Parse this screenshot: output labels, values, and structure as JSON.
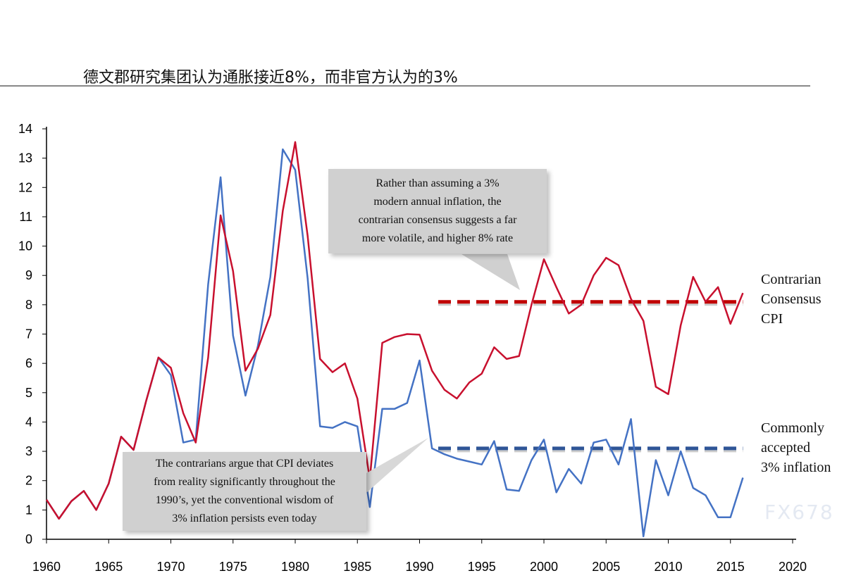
{
  "title": "德文郡研究集团认为通胀接近8%，而非官方认为的3%",
  "chart_data": {
    "type": "line",
    "title": "德文郡研究集团认为通胀接近8%，而非官方认为的3%",
    "xlabel": "",
    "ylabel": "",
    "xlim": [
      1960,
      2020
    ],
    "ylim": [
      0,
      14
    ],
    "x_ticks": [
      "1960",
      "1965",
      "1970",
      "1975",
      "1980",
      "1985",
      "1990",
      "1995",
      "2000",
      "2005",
      "2010",
      "2015",
      "2020"
    ],
    "y_ticks": [
      "0",
      "1",
      "2",
      "3",
      "4",
      "5",
      "6",
      "7",
      "8",
      "9",
      "10",
      "11",
      "12",
      "13",
      "14"
    ],
    "x_start": 1960,
    "series": [
      {
        "name": "Contrarian Consensus CPI",
        "color": "#c8102e",
        "values": [
          1.35,
          0.7,
          1.3,
          1.65,
          1.0,
          1.9,
          3.5,
          3.05,
          4.7,
          6.2,
          5.85,
          4.3,
          3.3,
          6.2,
          11.05,
          9.15,
          5.75,
          6.5,
          7.65,
          11.2,
          13.55,
          10.35,
          6.15,
          5.7,
          6.0,
          4.8,
          2.05,
          6.7,
          6.9,
          7.0,
          6.98,
          5.75,
          5.1,
          4.8,
          5.35,
          5.65,
          6.55,
          6.15,
          6.25,
          8.0,
          9.55,
          8.6,
          7.7,
          8.0,
          9.0,
          9.6,
          9.35,
          8.2,
          7.45,
          5.2,
          4.95,
          7.3,
          8.95,
          8.1,
          8.6,
          7.35,
          8.4
        ]
      },
      {
        "name": "Commonly accepted 3% inflation",
        "color": "#4472c4",
        "values": [
          1.35,
          0.7,
          1.3,
          1.65,
          1.0,
          1.9,
          3.5,
          3.05,
          4.7,
          6.2,
          5.6,
          3.3,
          3.4,
          8.7,
          12.35,
          6.95,
          4.9,
          6.6,
          8.95,
          13.3,
          12.6,
          8.9,
          3.85,
          3.8,
          4.0,
          3.85,
          1.1,
          4.45,
          4.45,
          4.65,
          6.1,
          3.1,
          2.9,
          2.75,
          2.65,
          2.55,
          3.35,
          1.7,
          1.65,
          2.7,
          3.4,
          1.6,
          2.4,
          1.9,
          3.3,
          3.4,
          2.55,
          4.1,
          0.1,
          2.7,
          1.5,
          3.0,
          1.75,
          1.5,
          0.75,
          0.75,
          2.1
        ]
      }
    ],
    "reference_lines": [
      {
        "name": "contrarian-average",
        "value": 8.1,
        "from": 1991.5,
        "to": 2016,
        "color": "#c00000"
      },
      {
        "name": "accepted-average",
        "value": 3.1,
        "from": 1991.5,
        "to": 2016,
        "color": "#2f5597"
      }
    ],
    "legend": [
      {
        "label": [
          "Contrarian",
          "Consensus",
          "CPI"
        ]
      },
      {
        "label": [
          "Commonly",
          "accepted",
          "3% inflation"
        ]
      }
    ],
    "annotations": [
      [
        "Rather than assuming a 3%",
        "modern annual inflation, the",
        "contrarian consensus suggests a far",
        "more volatile, and higher 8% rate"
      ],
      [
        "The contrarians argue that CPI deviates",
        "from reality significantly throughout the",
        "1990’s, yet the conventional wisdom of",
        "3% inflation persists even today"
      ]
    ]
  },
  "watermark": "FX678"
}
